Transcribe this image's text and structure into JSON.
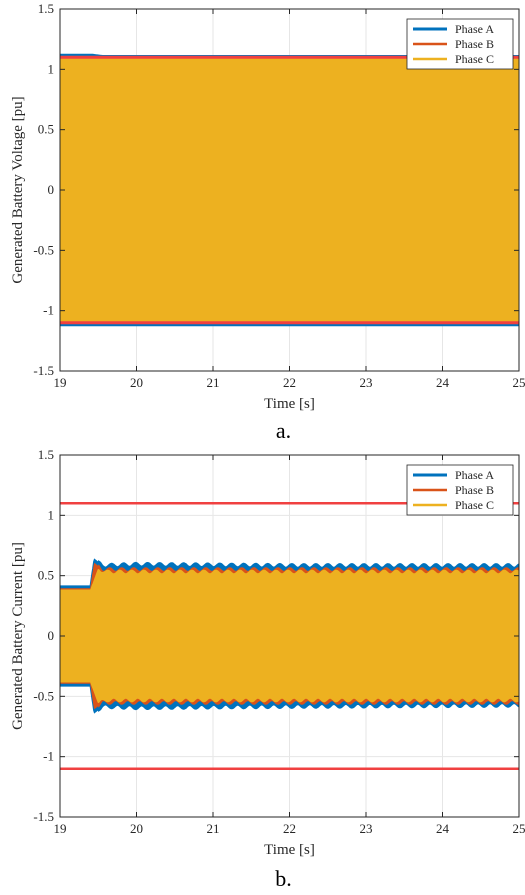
{
  "chart_data": [
    {
      "type": "line",
      "caption": "a.",
      "xlabel": "Time [s]",
      "ylabel": "Generated Battery Voltage [pu]",
      "xlim": [
        19,
        25
      ],
      "ylim": [
        -1.5,
        1.5
      ],
      "xticks": [
        "19",
        "20",
        "21",
        "22",
        "23",
        "24",
        "25"
      ],
      "yticks": [
        "1.5",
        "1",
        "0.5",
        "0",
        "-0.5",
        "-1",
        "-1.5"
      ],
      "grid": true,
      "legend_position": "top-right",
      "series": [
        {
          "name": "Phase A",
          "color": "#0072bd",
          "envelope": {
            "x": [
              19,
              19.42,
              19.55,
              25
            ],
            "upper": [
              1.12,
              1.12,
              1.11,
              1.11
            ],
            "lower": [
              -1.12,
              -1.12,
              -1.12,
              -1.12
            ]
          }
        },
        {
          "name": "Phase B",
          "color": "#d95319",
          "envelope": {
            "x": [
              19,
              25
            ],
            "upper": [
              1.1,
              1.1
            ],
            "lower": [
              -1.1,
              -1.1
            ]
          }
        },
        {
          "name": "Phase C",
          "color": "#edb120",
          "envelope": {
            "x": [
              19,
              25
            ],
            "upper": [
              1.09,
              1.09
            ],
            "lower": [
              -1.09,
              -1.09
            ]
          }
        }
      ],
      "limit_lines": [
        1.1,
        -1.1
      ]
    },
    {
      "type": "line",
      "caption": "b.",
      "xlabel": "Time [s]",
      "ylabel": "Generated Battery Current [pu]",
      "xlim": [
        19,
        25
      ],
      "ylim": [
        -1.5,
        1.5
      ],
      "xticks": [
        "19",
        "20",
        "21",
        "22",
        "23",
        "24",
        "25"
      ],
      "yticks": [
        "1.5",
        "1",
        "0.5",
        "0",
        "-0.5",
        "-1",
        "-1.5"
      ],
      "grid": true,
      "legend_position": "top-right",
      "series": [
        {
          "name": "Phase A",
          "color": "#0072bd",
          "envelope": {
            "x": [
              19,
              19.4,
              19.45,
              19.55,
              20,
              22,
              25
            ],
            "upper": [
              0.41,
              0.41,
              0.63,
              0.58,
              0.59,
              0.58,
              0.58
            ],
            "lower": [
              -0.41,
              -0.41,
              -0.63,
              -0.58,
              -0.59,
              -0.58,
              -0.57
            ]
          }
        },
        {
          "name": "Phase B",
          "color": "#d95319",
          "envelope": {
            "x": [
              19,
              19.4,
              19.45,
              19.55,
              25
            ],
            "upper": [
              0.39,
              0.39,
              0.6,
              0.55,
              0.55
            ],
            "lower": [
              -0.39,
              -0.39,
              -0.6,
              -0.55,
              -0.55
            ]
          }
        },
        {
          "name": "Phase C",
          "color": "#edb120",
          "envelope": {
            "x": [
              19,
              19.4,
              19.5,
              19.6,
              25
            ],
            "upper": [
              0.38,
              0.38,
              0.55,
              0.53,
              0.53
            ],
            "lower": [
              -0.38,
              -0.38,
              -0.55,
              -0.53,
              -0.53
            ]
          }
        }
      ],
      "limit_lines": [
        1.1,
        -1.1
      ]
    }
  ]
}
